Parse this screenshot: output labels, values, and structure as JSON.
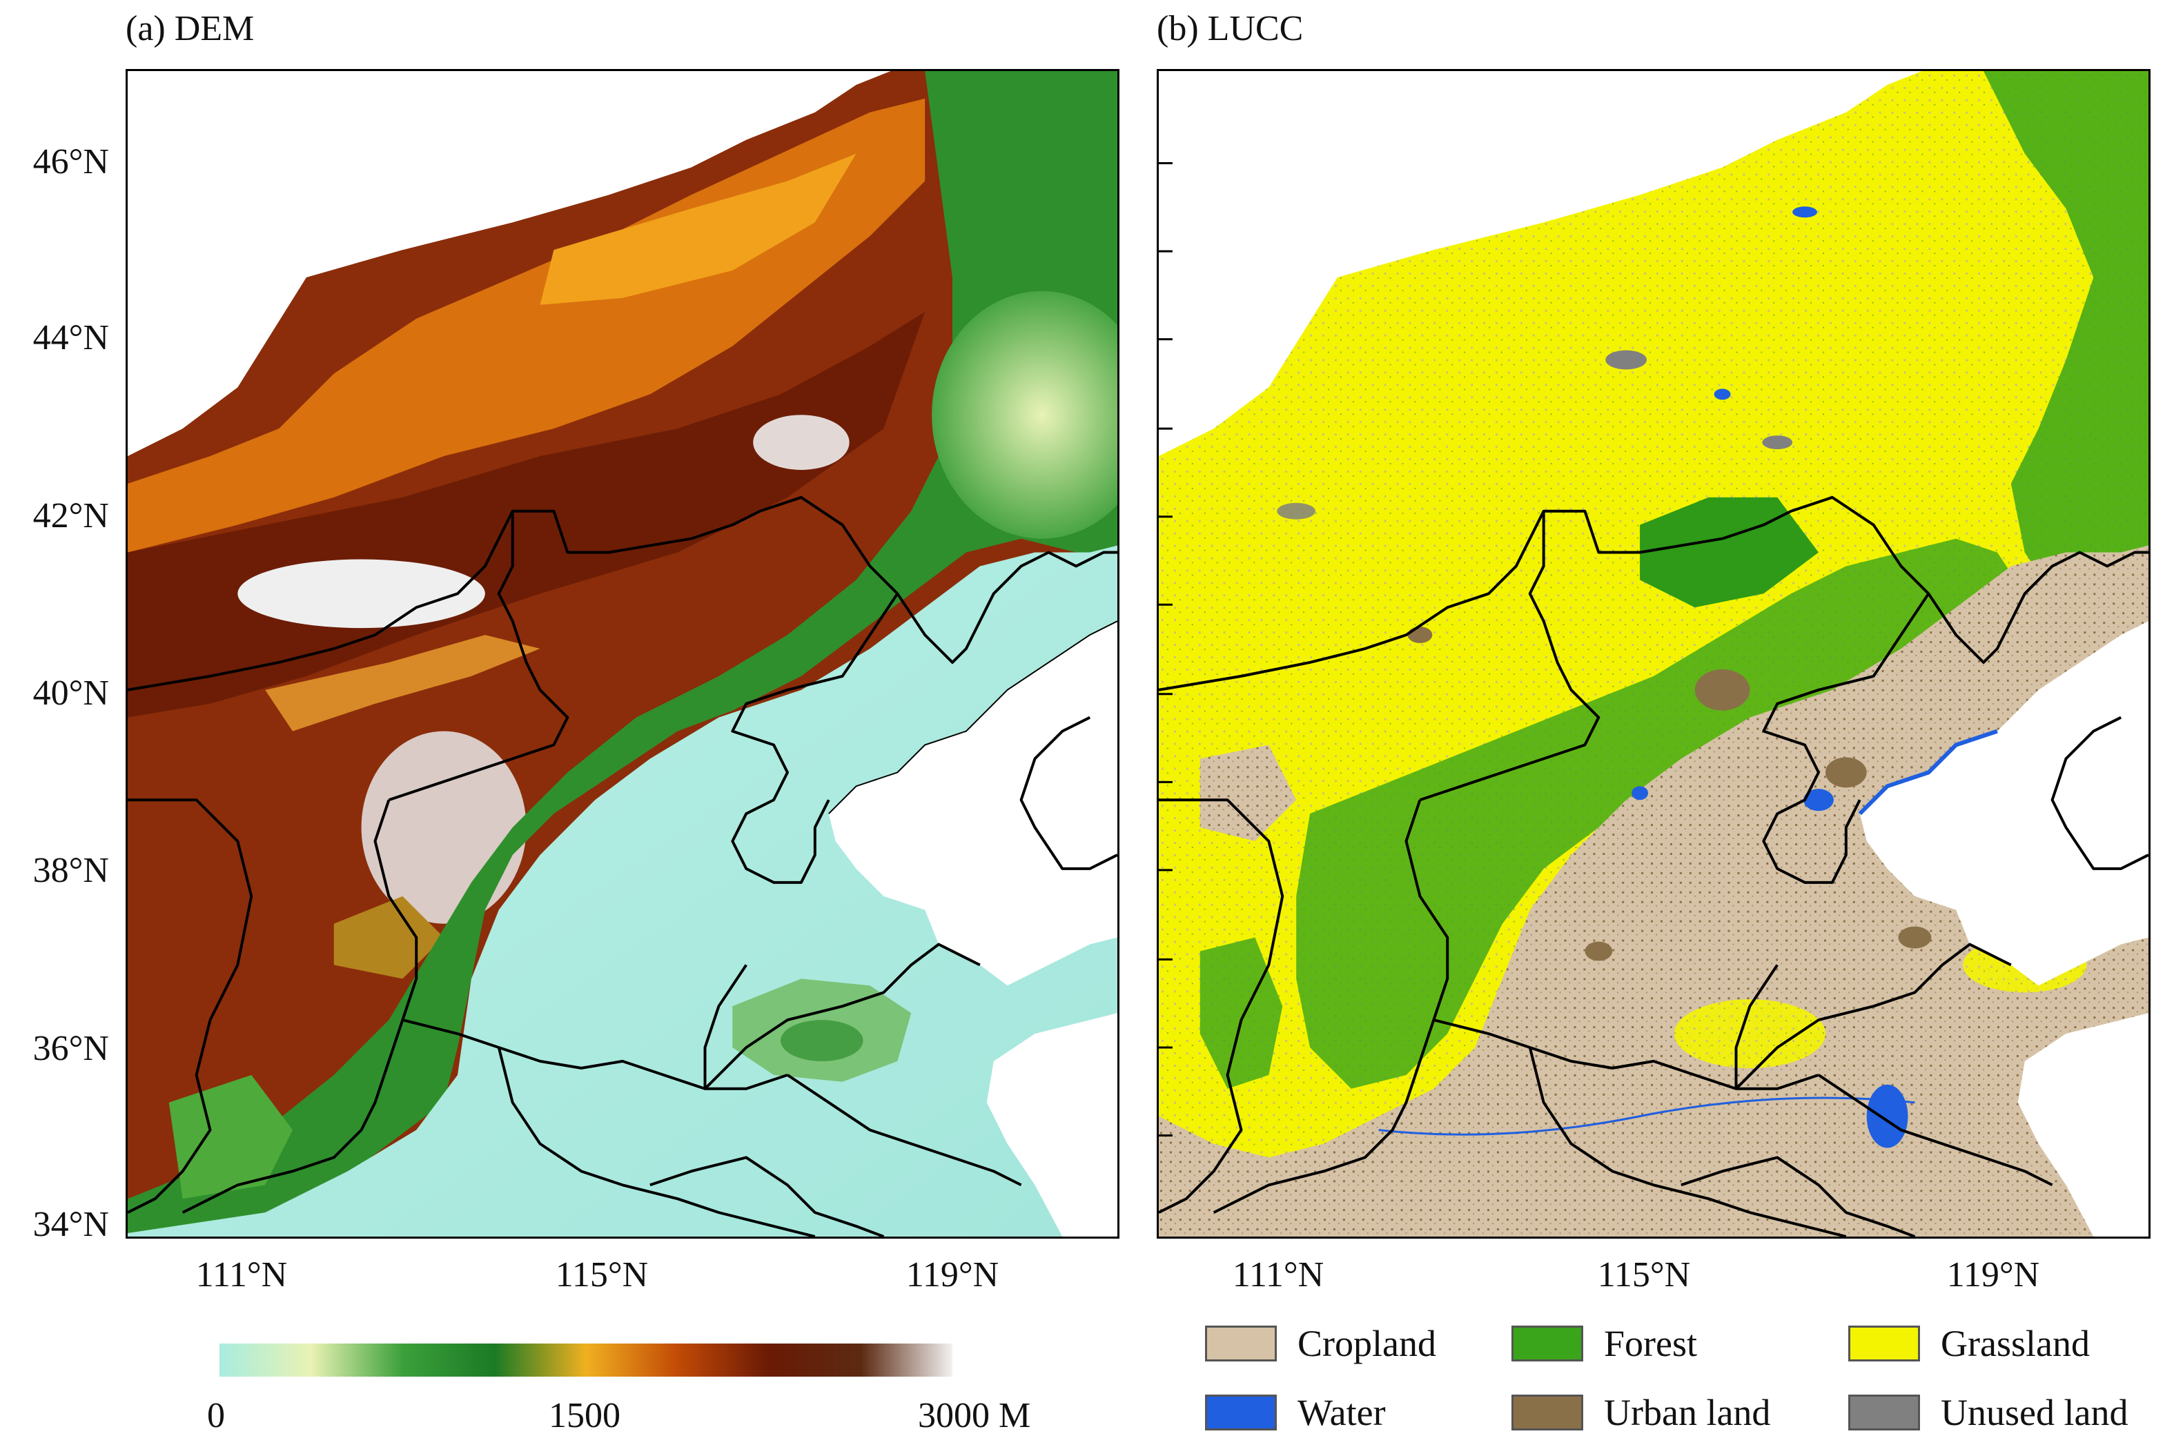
{
  "panels": {
    "a": {
      "title": "(a) DEM"
    },
    "b": {
      "title": "(b) LUCC"
    }
  },
  "lat_ticks": [
    "46°N",
    "44°N",
    "42°N",
    "40°N",
    "38°N",
    "36°N",
    "34°N"
  ],
  "lon_ticks": [
    "111°N",
    "115°N",
    "119°N"
  ],
  "colorbar": {
    "labels": [
      "0",
      "1500",
      "3000 M"
    ],
    "colors": [
      "#a8ecdf",
      "#e9f2b4",
      "#3ba03a",
      "#1b7a25",
      "#f0b020",
      "#c24a06",
      "#6a1a05",
      "#5c2a12",
      "#f2f2f2"
    ]
  },
  "legend": [
    {
      "label": "Cropland",
      "color": "#d6c2a6"
    },
    {
      "label": "Forest",
      "color": "#3aa51b"
    },
    {
      "label": "Grassland",
      "color": "#f4f400"
    },
    {
      "label": "Water",
      "color": "#1f5fe0"
    },
    {
      "label": "Urban land",
      "color": "#8a7048"
    },
    {
      "label": "Unused land",
      "color": "#808080"
    }
  ]
}
